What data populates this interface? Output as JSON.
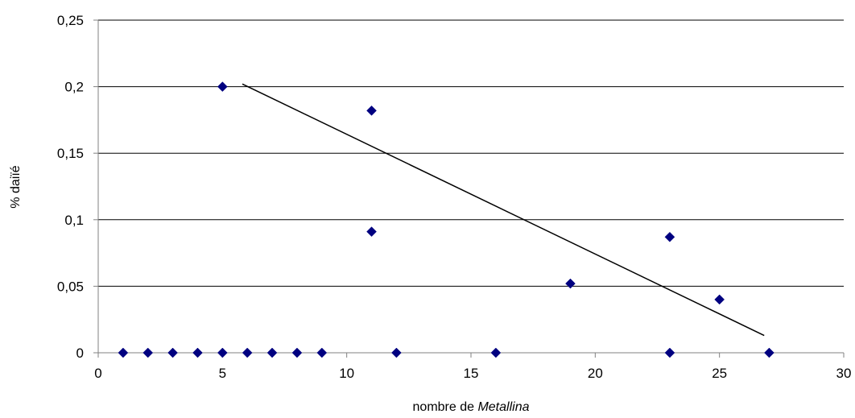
{
  "chart_data": {
    "type": "scatter",
    "title": "",
    "xlabel_prefix": "nombre de ",
    "xlabel_italic": "Metallina",
    "ylabel": "% daiïé",
    "xlim": [
      0,
      30
    ],
    "ylim": [
      0,
      0.25
    ],
    "x_ticks": [
      {
        "value": 0,
        "label": "0"
      },
      {
        "value": 5,
        "label": "5"
      },
      {
        "value": 10,
        "label": "10"
      },
      {
        "value": 15,
        "label": "15"
      },
      {
        "value": 20,
        "label": "20"
      },
      {
        "value": 25,
        "label": "25"
      },
      {
        "value": 30,
        "label": "30"
      }
    ],
    "y_ticks": [
      {
        "value": 0,
        "label": "0"
      },
      {
        "value": 0.05,
        "label": "0,05"
      },
      {
        "value": 0.1,
        "label": "0,1"
      },
      {
        "value": 0.15,
        "label": "0,15"
      },
      {
        "value": 0.2,
        "label": "0,2"
      },
      {
        "value": 0.25,
        "label": "0,25"
      }
    ],
    "grid": "horizontal",
    "legend": "none",
    "marker": "diamond",
    "marker_color": "#000080",
    "line_color": "#000000",
    "points": [
      {
        "x": 1,
        "y": 0
      },
      {
        "x": 2,
        "y": 0
      },
      {
        "x": 3,
        "y": 0
      },
      {
        "x": 4,
        "y": 0
      },
      {
        "x": 5,
        "y": 0
      },
      {
        "x": 5,
        "y": 0.2
      },
      {
        "x": 6,
        "y": 0
      },
      {
        "x": 7,
        "y": 0
      },
      {
        "x": 8,
        "y": 0
      },
      {
        "x": 9,
        "y": 0
      },
      {
        "x": 11,
        "y": 0.182
      },
      {
        "x": 11,
        "y": 0.091
      },
      {
        "x": 12,
        "y": 0
      },
      {
        "x": 16,
        "y": 0
      },
      {
        "x": 19,
        "y": 0.052
      },
      {
        "x": 23,
        "y": 0.087
      },
      {
        "x": 23,
        "y": 0
      },
      {
        "x": 25,
        "y": 0.04
      },
      {
        "x": 27,
        "y": 0
      }
    ],
    "trendline": {
      "x": [
        5.8,
        26.8
      ],
      "y": [
        0.202,
        0.013
      ]
    }
  }
}
